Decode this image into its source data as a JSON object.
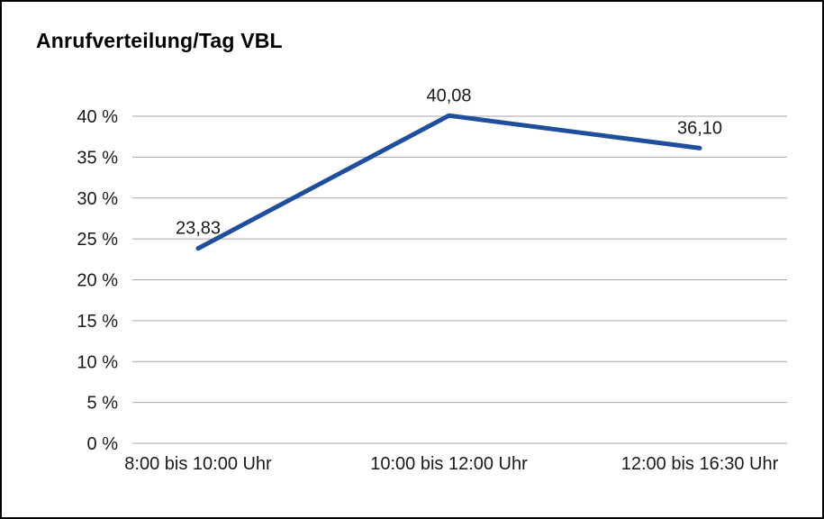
{
  "chart_data": {
    "type": "line",
    "title": "Anrufverteilung/Tag VBL",
    "categories": [
      "8:00 bis 10:00 Uhr",
      "10:00 bis 12:00 Uhr",
      "12:00 bis 16:30 Uhr"
    ],
    "series": [
      {
        "name": "Anrufverteilung/Tag VBL",
        "values": [
          23.83,
          40.08,
          36.1
        ]
      }
    ],
    "data_labels": [
      "23,83",
      "40,08",
      "36,10"
    ],
    "xlabel": "",
    "ylabel": "",
    "ylim": [
      0,
      40
    ],
    "ytick_step": 5,
    "ytick_labels": [
      "0 %",
      "5 %",
      "10 %",
      "15 %",
      "20 %",
      "25 %",
      "30 %",
      "35 %",
      "40 %"
    ],
    "grid": true,
    "legend": "none",
    "colors": {
      "line": "#1f4e9c",
      "grid": "#a6a6a6",
      "text": "#1a1a1a",
      "border": "#000000",
      "background": "#ffffff"
    }
  }
}
